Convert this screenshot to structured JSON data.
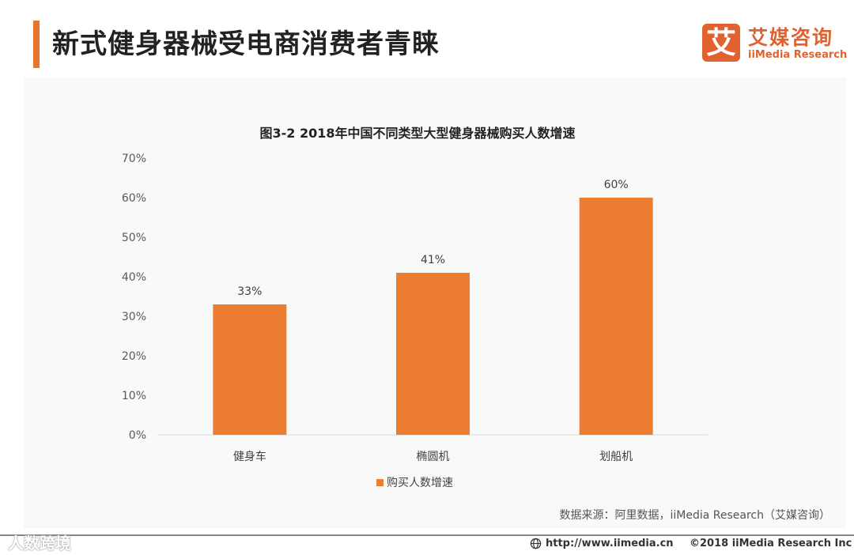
{
  "header": {
    "title": "新式健身器械受电商消费者青睐",
    "accent_color": "#e9742b"
  },
  "logo": {
    "mark": "艾",
    "name_cn": "艾媒咨询",
    "name_en": "iiMedia Research",
    "color": "#e2622f"
  },
  "chart_data": {
    "type": "bar",
    "title": "图3-2 2018年中国不同类型大型健身器械购买人数增速",
    "categories": [
      "健身车",
      "椭圆机",
      "划船机"
    ],
    "series": [
      {
        "name": "购买人数增速",
        "values": [
          33,
          41,
          60
        ],
        "color": "#ed7d31"
      }
    ],
    "data_labels": [
      "33%",
      "41%",
      "60%"
    ],
    "yticks": [
      "0%",
      "10%",
      "20%",
      "30%",
      "40%",
      "50%",
      "60%",
      "70%"
    ],
    "ylim": [
      0,
      70
    ],
    "xlabel": "",
    "ylabel": "",
    "grid": false,
    "legend_position": "bottom"
  },
  "source": "数据来源：阿里数据，iiMedia Research（艾媒咨询）",
  "footer": {
    "url": "http://www.iimedia.cn",
    "copyright": "©2018  iiMedia Research  Inc",
    "watermark": "人数跨境"
  }
}
